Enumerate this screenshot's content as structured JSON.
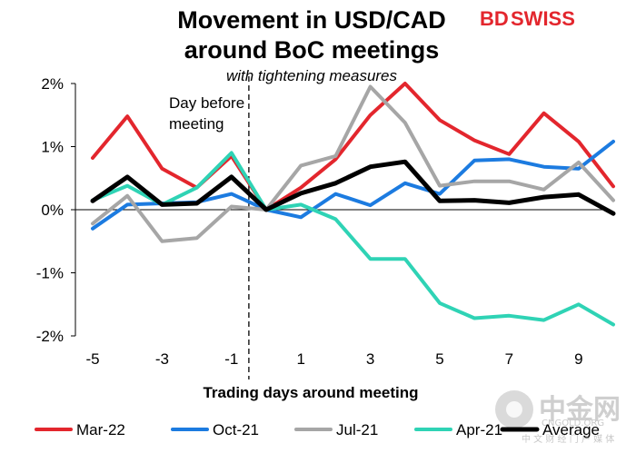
{
  "brand": {
    "part1": "BD",
    "part2": "SWISS",
    "color": "#e3262d"
  },
  "watermark": {
    "cn": "中金网",
    "url": "CNGOLD.ORG",
    "sub": "中 文 财 经 门 户 媒 体"
  },
  "chart_data": {
    "type": "line",
    "title_line1": "Movement in USD/CAD",
    "title_line2": "around BoC meetings",
    "subtitle": "with tightening measures",
    "xlabel": "Trading days around meeting",
    "ylabel": "",
    "xlim": [
      -5,
      10
    ],
    "ylim": [
      -2,
      2
    ],
    "x_ticks": [
      -5,
      -3,
      -1,
      1,
      3,
      5,
      7,
      9
    ],
    "x_tick_labels": [
      "-5",
      "-3",
      "-1",
      "1",
      "3",
      "5",
      "7",
      "9"
    ],
    "y_ticks": [
      -2,
      -1,
      0,
      1,
      2
    ],
    "y_tick_labels": [
      "-2%",
      "-1%",
      "0%",
      "1%",
      "2%"
    ],
    "annotation": {
      "line1": "Day before",
      "line2": "meeting",
      "x": -0.5
    },
    "legend_position": "bottom",
    "grid": false,
    "x": [
      -5,
      -4,
      -3,
      -2,
      -1,
      0,
      1,
      2,
      3,
      4,
      5,
      6,
      7,
      8,
      9,
      10
    ],
    "series": [
      {
        "name": "Mar-22",
        "color": "#e3262d",
        "width": 4,
        "values": [
          0.82,
          1.48,
          0.65,
          0.35,
          0.85,
          0.0,
          0.35,
          0.8,
          1.5,
          2.0,
          1.42,
          1.1,
          0.88,
          1.53,
          1.08,
          0.37
        ]
      },
      {
        "name": "Oct-21",
        "color": "#1c7be0",
        "width": 4,
        "values": [
          -0.3,
          0.08,
          0.1,
          0.12,
          0.25,
          0.0,
          -0.12,
          0.25,
          0.07,
          0.42,
          0.25,
          0.78,
          0.8,
          0.68,
          0.65,
          1.08
        ]
      },
      {
        "name": "Jul-21",
        "color": "#a6a6a6",
        "width": 4,
        "values": [
          -0.22,
          0.22,
          -0.5,
          -0.45,
          0.05,
          0.0,
          0.7,
          0.85,
          1.95,
          1.38,
          0.38,
          0.45,
          0.45,
          0.32,
          0.75,
          0.15
        ]
      },
      {
        "name": "Apr-21",
        "color": "#2fd3b5",
        "width": 4,
        "values": [
          0.15,
          0.38,
          0.08,
          0.35,
          0.9,
          0.0,
          0.08,
          -0.15,
          -0.78,
          -0.78,
          -1.48,
          -1.72,
          -1.68,
          -1.75,
          -1.5,
          -1.82
        ]
      },
      {
        "name": "Average",
        "color": "#000000",
        "width": 5,
        "values": [
          0.14,
          0.52,
          0.08,
          0.1,
          0.52,
          0.0,
          0.26,
          0.42,
          0.68,
          0.76,
          0.14,
          0.15,
          0.11,
          0.2,
          0.24,
          -0.06
        ]
      }
    ]
  }
}
